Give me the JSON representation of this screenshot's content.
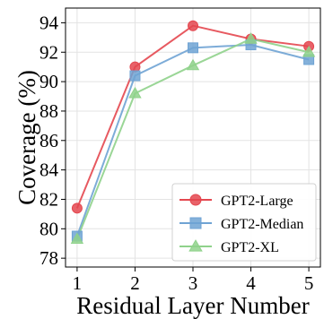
{
  "chart_data": {
    "type": "line",
    "title": "",
    "xlabel": "Residual Layer Number",
    "ylabel": "Coverage (%)",
    "x": [
      1,
      2,
      3,
      4,
      5
    ],
    "xlim": [
      0.8,
      5.2
    ],
    "ylim": [
      77.4,
      95.0
    ],
    "xticks": [
      1,
      2,
      3,
      4,
      5
    ],
    "yticks": [
      78,
      80,
      82,
      84,
      86,
      88,
      90,
      92,
      94
    ],
    "grid": true,
    "legend_position": "lower-right",
    "series": [
      {
        "name": "GPT2-Large",
        "marker": "circle",
        "color": "#e4474f",
        "values": [
          81.4,
          91.0,
          93.8,
          92.9,
          92.4
        ]
      },
      {
        "name": "GPT2-Median",
        "marker": "square",
        "color": "#6fa3d4",
        "values": [
          79.5,
          90.4,
          92.3,
          92.5,
          91.5
        ]
      },
      {
        "name": "GPT2-XL",
        "marker": "triangle",
        "color": "#8fd28b",
        "values": [
          79.3,
          89.2,
          91.1,
          92.9,
          92.0
        ]
      }
    ]
  }
}
